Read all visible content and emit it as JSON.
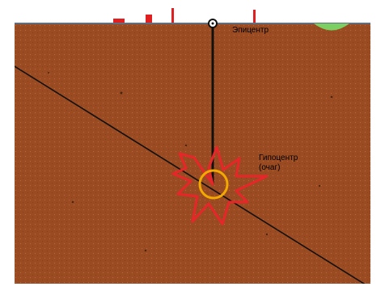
{
  "labels": {
    "epicenter": "Эпицентр",
    "hypocenter_line1": "Гипоцентр",
    "hypocenter_line2": "(очаг)"
  },
  "colors": {
    "ground": "#9a4b22",
    "ground_speckle": "#6b3214",
    "surface_line": "#5f6f7f",
    "fault_line": "#111111",
    "focus_ring": "#f2a900",
    "shock_burst": "#e8262a",
    "surface_marks": "#e02020",
    "tree": "#7ccf63"
  }
}
